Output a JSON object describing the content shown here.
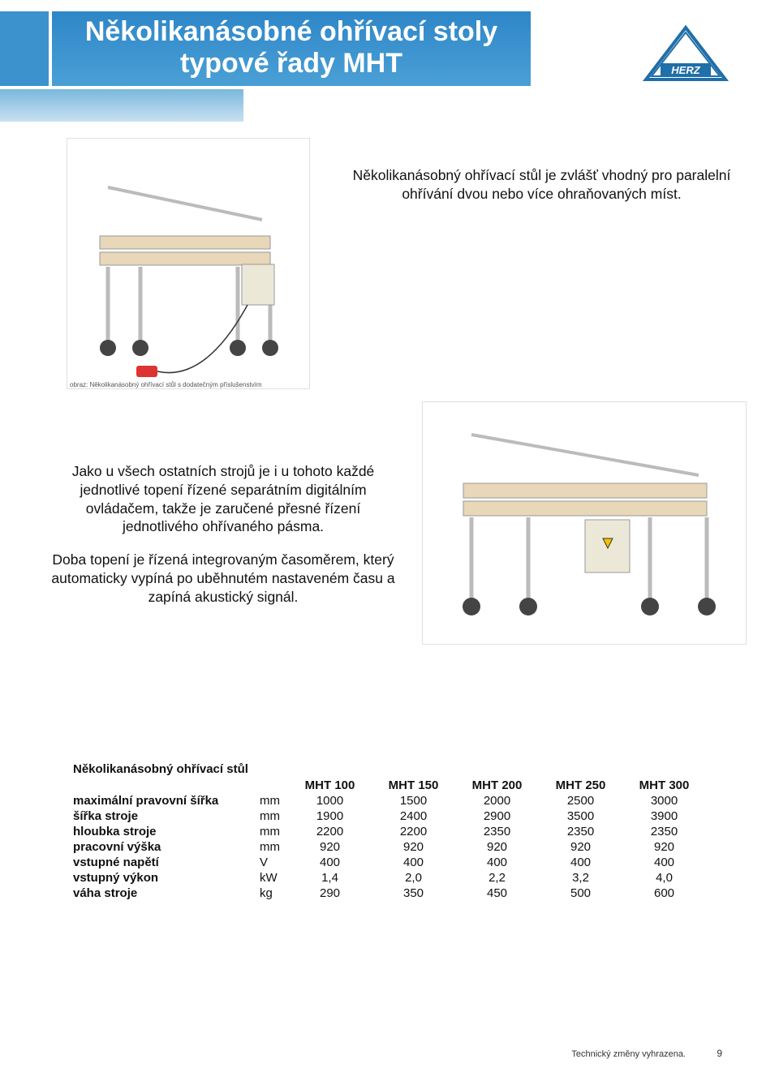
{
  "header": {
    "title_line1": "Několikanásobné ohřívací stoly",
    "title_line2": "typové řady MHT",
    "logo_text": "HERZ",
    "colors": {
      "header_bg_top": "#2e86c8",
      "header_bg_bottom": "#4aa0d5",
      "sub_bg_top": "#7ab7dd",
      "sub_bg_bottom": "#c8e1f1",
      "header_text": "#ffffff",
      "logo_stroke": "#1f6fa8",
      "logo_fill": "#ffffff"
    }
  },
  "image1_caption": "obraz: Několikanásobný ohřívací stůl s dodatečným příslušenstvím",
  "intro_text": "Několikanásobný ohřívací stůl je zvlášť vhodný pro paralelní ohřívání dvou nebo více ohraňovaných míst.",
  "paragraph1": "Jako u všech ostatních strojů je i u tohoto každé jednotlivé topení řízené separátním digitálním ovládačem, takže je zaručené přesné řízení jednotlivého ohřívaného pásma.",
  "paragraph2": "Doba topení je řízená integrovaným časoměrem, který automaticky vypíná po uběhnutém nastaveném času a zapíná akustický signál.",
  "spec": {
    "title": "Několikanásobný ohřívací stůl",
    "columns": [
      "MHT 100",
      "MHT 150",
      "MHT 200",
      "MHT 250",
      "MHT 300"
    ],
    "rows": [
      {
        "label": "maximální pravovní šířka",
        "unit": "mm",
        "values": [
          "1000",
          "1500",
          "2000",
          "2500",
          "3000"
        ]
      },
      {
        "label": "šířka stroje",
        "unit": "mm",
        "values": [
          "1900",
          "2400",
          "2900",
          "3500",
          "3900"
        ]
      },
      {
        "label": "hloubka stroje",
        "unit": "mm",
        "values": [
          "2200",
          "2200",
          "2350",
          "2350",
          "2350"
        ]
      },
      {
        "label": "pracovní výška",
        "unit": "mm",
        "values": [
          "920",
          "920",
          "920",
          "920",
          "920"
        ]
      },
      {
        "label": "vstupné napětí",
        "unit": "V",
        "values": [
          "400",
          "400",
          "400",
          "400",
          "400"
        ]
      },
      {
        "label": "vstupný výkon",
        "unit": "kW",
        "values": [
          "1,4",
          "2,0",
          "2,2",
          "3,2",
          "4,0"
        ]
      },
      {
        "label": "váha stroje",
        "unit": "kg",
        "values": [
          "290",
          "350",
          "450",
          "500",
          "600"
        ]
      }
    ]
  },
  "footer": {
    "note": "Technický změny vyhrazena.",
    "page": "9"
  }
}
